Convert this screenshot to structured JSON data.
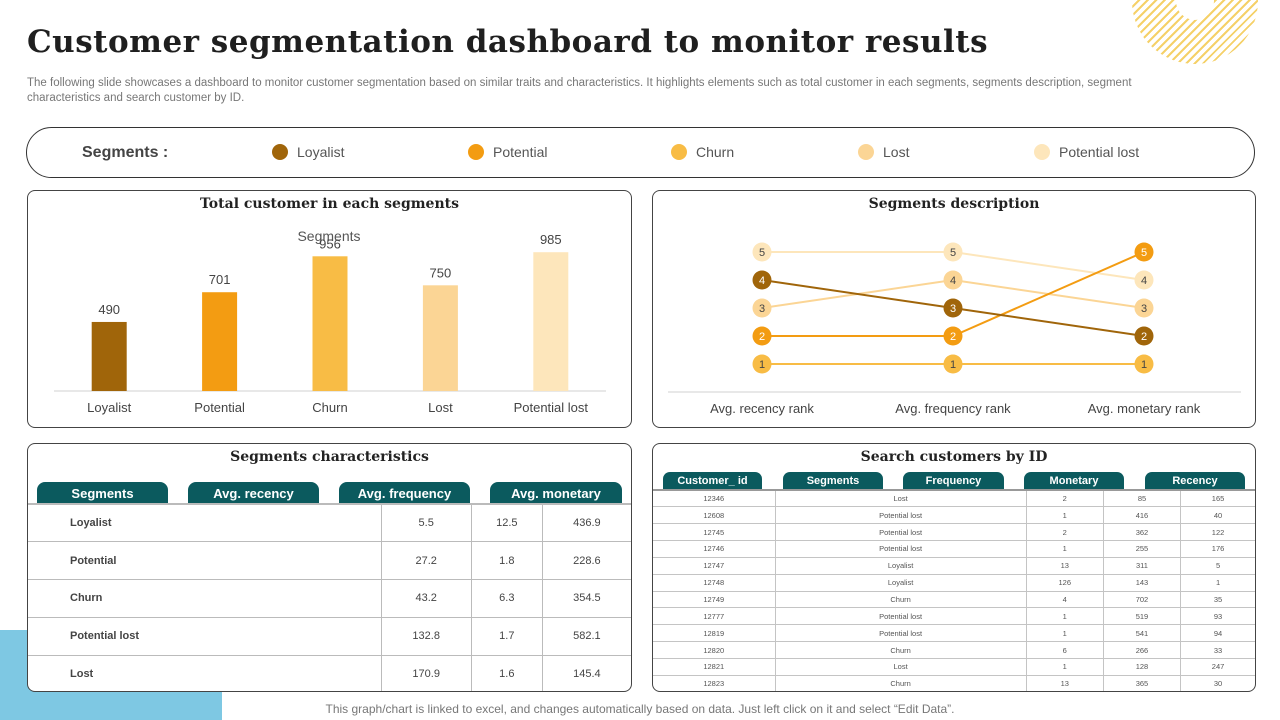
{
  "page": {
    "title": "Customer segmentation dashboard to monitor results",
    "subtitle": "The following slide showcases a dashboard to monitor customer segmentation based on similar traits and characteristics. It highlights elements such as total customer in each segments, segments description, segment characteristics and search customer by ID.",
    "footnote": "This graph/chart is linked to excel,  and changes automatically based on data. Just left click on it and select “Edit Data”."
  },
  "legend": {
    "title": "Segments :",
    "items": [
      {
        "label": "Loyalist",
        "color": "#a0650a"
      },
      {
        "label": "Potential",
        "color": "#f39c12"
      },
      {
        "label": "Churn",
        "color": "#f8bc45"
      },
      {
        "label": "Lost",
        "color": "#fbd595"
      },
      {
        "label": "Potential lost",
        "color": "#fde6bb"
      }
    ]
  },
  "panels": {
    "total_title": "Total customer in  each segments",
    "description_title": "Segments description",
    "characteristics_title": "Segments characteristics",
    "search_title": "Search customers by ID"
  },
  "chart_data": [
    {
      "type": "bar",
      "title": "Segments",
      "categories": [
        "Loyalist",
        "Potential",
        "Churn",
        "Lost",
        "Potential lost"
      ],
      "values": [
        490,
        701,
        956,
        750,
        985
      ],
      "colors": [
        "#a0650a",
        "#f39c12",
        "#f8bc45",
        "#fbd595",
        "#fde6bb"
      ],
      "ylim": [
        0,
        1100
      ],
      "grid": false
    },
    {
      "type": "line",
      "categories": [
        "Avg. recency rank",
        "Avg. frequency rank",
        "Avg. monetary rank"
      ],
      "ylim": [
        1,
        5
      ],
      "series": [
        {
          "name": "Loyalist",
          "values": [
            4,
            3,
            2
          ],
          "color": "#a0650a"
        },
        {
          "name": "Potential",
          "values": [
            2,
            2,
            5
          ],
          "color": "#f39c12"
        },
        {
          "name": "Churn",
          "values": [
            1,
            1,
            1
          ],
          "color": "#f8bc45"
        },
        {
          "name": "Lost",
          "values": [
            3,
            4,
            3
          ],
          "color": "#fbd595"
        },
        {
          "name": "Potential lost",
          "values": [
            5,
            5,
            4
          ],
          "color": "#fde6bb"
        }
      ]
    }
  ],
  "characteristics": {
    "columns": [
      "Segments",
      "Avg. recency",
      "Avg. frequency",
      "Avg. monetary"
    ],
    "rows": [
      [
        "Loyalist",
        "5.5",
        "12.5",
        "436.9"
      ],
      [
        "Potential",
        "27.2",
        "1.8",
        "228.6"
      ],
      [
        "Churn",
        "43.2",
        "6.3",
        "354.5"
      ],
      [
        "Potential lost",
        "132.8",
        "1.7",
        "582.1"
      ],
      [
        "Lost",
        "170.9",
        "1.6",
        "145.4"
      ]
    ]
  },
  "search": {
    "columns": [
      "Customer_ id",
      "Segments",
      "Frequency",
      "Monetary",
      "Recency"
    ],
    "rows": [
      [
        "12346",
        "Lost",
        "2",
        "85",
        "165"
      ],
      [
        "12608",
        "Potential lost",
        "1",
        "416",
        "40"
      ],
      [
        "12745",
        "Potential lost",
        "2",
        "362",
        "122"
      ],
      [
        "12746",
        "Potential lost",
        "1",
        "255",
        "176"
      ],
      [
        "12747",
        "Loyalist",
        "13",
        "311",
        "5"
      ],
      [
        "12748",
        "Loyalist",
        "126",
        "143",
        "1"
      ],
      [
        "12749",
        "Churn",
        "4",
        "702",
        "35"
      ],
      [
        "12777",
        "Potential lost",
        "1",
        "519",
        "93"
      ],
      [
        "12819",
        "Potential lost",
        "1",
        "541",
        "94"
      ],
      [
        "12820",
        "Churn",
        "6",
        "266",
        "33"
      ],
      [
        "12821",
        "Lost",
        "1",
        "128",
        "247"
      ],
      [
        "12823",
        "Churn",
        "13",
        "365",
        "30"
      ]
    ]
  }
}
